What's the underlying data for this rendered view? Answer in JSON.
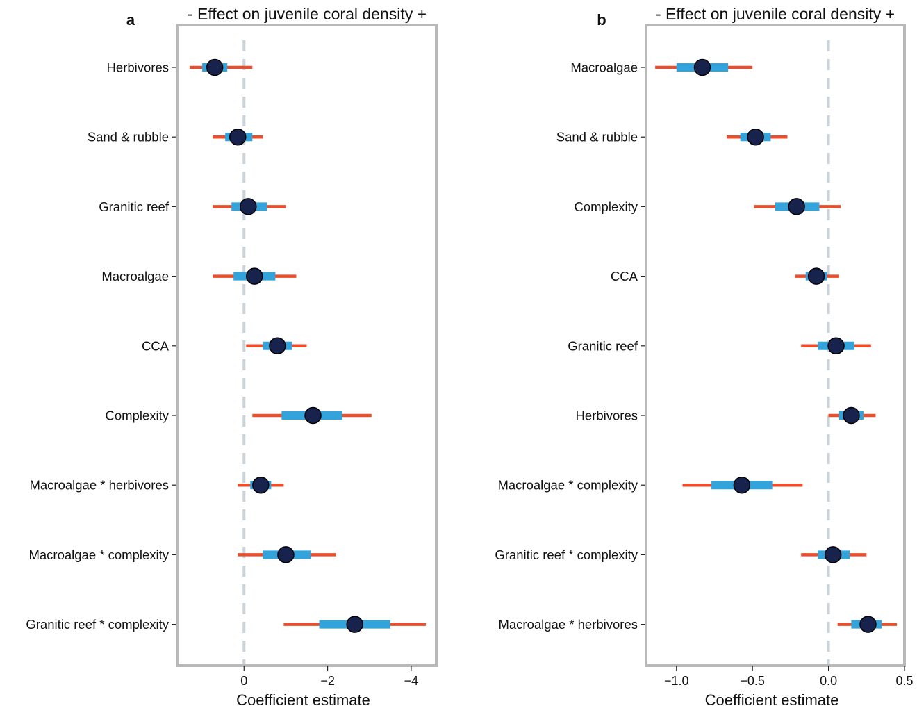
{
  "chart_data": [
    {
      "type": "forest",
      "panel_letter": "a",
      "top_label": "- Effect on juvenile coral density +",
      "xlabel": "Coefficient estimate",
      "xlim": [
        1.6,
        -4.6
      ],
      "reversed_axis": true,
      "xticks": [
        0,
        -2,
        -4
      ],
      "xtick_labels": [
        "0",
        "−2",
        "−4"
      ],
      "reference_line": 0,
      "rows": [
        {
          "label": "Herbivores",
          "estimate": 0.7,
          "inner": [
            1.0,
            0.4
          ],
          "outer": [
            1.3,
            -0.2
          ]
        },
        {
          "label": "Sand & rubble",
          "estimate": 0.15,
          "inner": [
            0.45,
            -0.2
          ],
          "outer": [
            0.75,
            -0.45
          ]
        },
        {
          "label": "Granitic reef",
          "estimate": -0.1,
          "inner": [
            0.3,
            -0.55
          ],
          "outer": [
            0.75,
            -1.0
          ]
        },
        {
          "label": "Macroalgae",
          "estimate": -0.25,
          "inner": [
            0.25,
            -0.75
          ],
          "outer": [
            0.75,
            -1.25
          ]
        },
        {
          "label": "CCA",
          "estimate": -0.8,
          "inner": [
            -0.45,
            -1.15
          ],
          "outer": [
            -0.05,
            -1.5
          ]
        },
        {
          "label": "Complexity",
          "estimate": -1.65,
          "inner": [
            -0.9,
            -2.35
          ],
          "outer": [
            -0.2,
            -3.05
          ]
        },
        {
          "label": "Macroalgae * herbivores",
          "estimate": -0.4,
          "inner": [
            -0.15,
            -0.65
          ],
          "outer": [
            0.15,
            -0.95
          ]
        },
        {
          "label": "Macroalgae * complexity",
          "estimate": -1.0,
          "inner": [
            -0.45,
            -1.6
          ],
          "outer": [
            0.15,
            -2.2
          ]
        },
        {
          "label": "Granitic reef * complexity",
          "estimate": -2.65,
          "inner": [
            -1.8,
            -3.5
          ],
          "outer": [
            -0.95,
            -4.35
          ]
        }
      ]
    },
    {
      "type": "forest",
      "panel_letter": "b",
      "top_label": "- Effect on juvenile coral density +",
      "xlabel": "Coefficient estimate",
      "xlim": [
        -1.2,
        0.5
      ],
      "reversed_axis": false,
      "xticks": [
        -1.0,
        -0.5,
        0.0,
        0.5
      ],
      "xtick_labels": [
        "−1.0",
        "−0.5",
        "0.0",
        "0.5"
      ],
      "reference_line": 0,
      "rows": [
        {
          "label": "Macroalgae",
          "estimate": -0.83,
          "inner": [
            -1.0,
            -0.66
          ],
          "outer": [
            -1.14,
            -0.5
          ]
        },
        {
          "label": "Sand & rubble",
          "estimate": -0.48,
          "inner": [
            -0.58,
            -0.38
          ],
          "outer": [
            -0.67,
            -0.27
          ]
        },
        {
          "label": "Complexity",
          "estimate": -0.21,
          "inner": [
            -0.35,
            -0.06
          ],
          "outer": [
            -0.49,
            0.08
          ]
        },
        {
          "label": "CCA",
          "estimate": -0.08,
          "inner": [
            -0.15,
            -0.01
          ],
          "outer": [
            -0.22,
            0.07
          ]
        },
        {
          "label": "Granitic reef",
          "estimate": 0.05,
          "inner": [
            -0.07,
            0.17
          ],
          "outer": [
            -0.18,
            0.28
          ]
        },
        {
          "label": "Herbivores",
          "estimate": 0.15,
          "inner": [
            0.07,
            0.23
          ],
          "outer": [
            0.0,
            0.31
          ]
        },
        {
          "label": "Macroalgae * complexity",
          "estimate": -0.57,
          "inner": [
            -0.77,
            -0.37
          ],
          "outer": [
            -0.96,
            -0.17
          ]
        },
        {
          "label": "Granitic reef * complexity",
          "estimate": 0.03,
          "inner": [
            -0.07,
            0.14
          ],
          "outer": [
            -0.18,
            0.25
          ]
        },
        {
          "label": "Macroalgae * herbivores",
          "estimate": 0.26,
          "inner": [
            0.15,
            0.35
          ],
          "outer": [
            0.06,
            0.45
          ]
        }
      ]
    }
  ],
  "colors": {
    "frame": "#b9b9b9",
    "reference_line": "#c9d3d9",
    "outer_interval": "#ea4f2d",
    "inner_interval": "#33a3dc",
    "point_fill": "#17234d",
    "point_stroke": "#000000",
    "axis": "#222222"
  }
}
